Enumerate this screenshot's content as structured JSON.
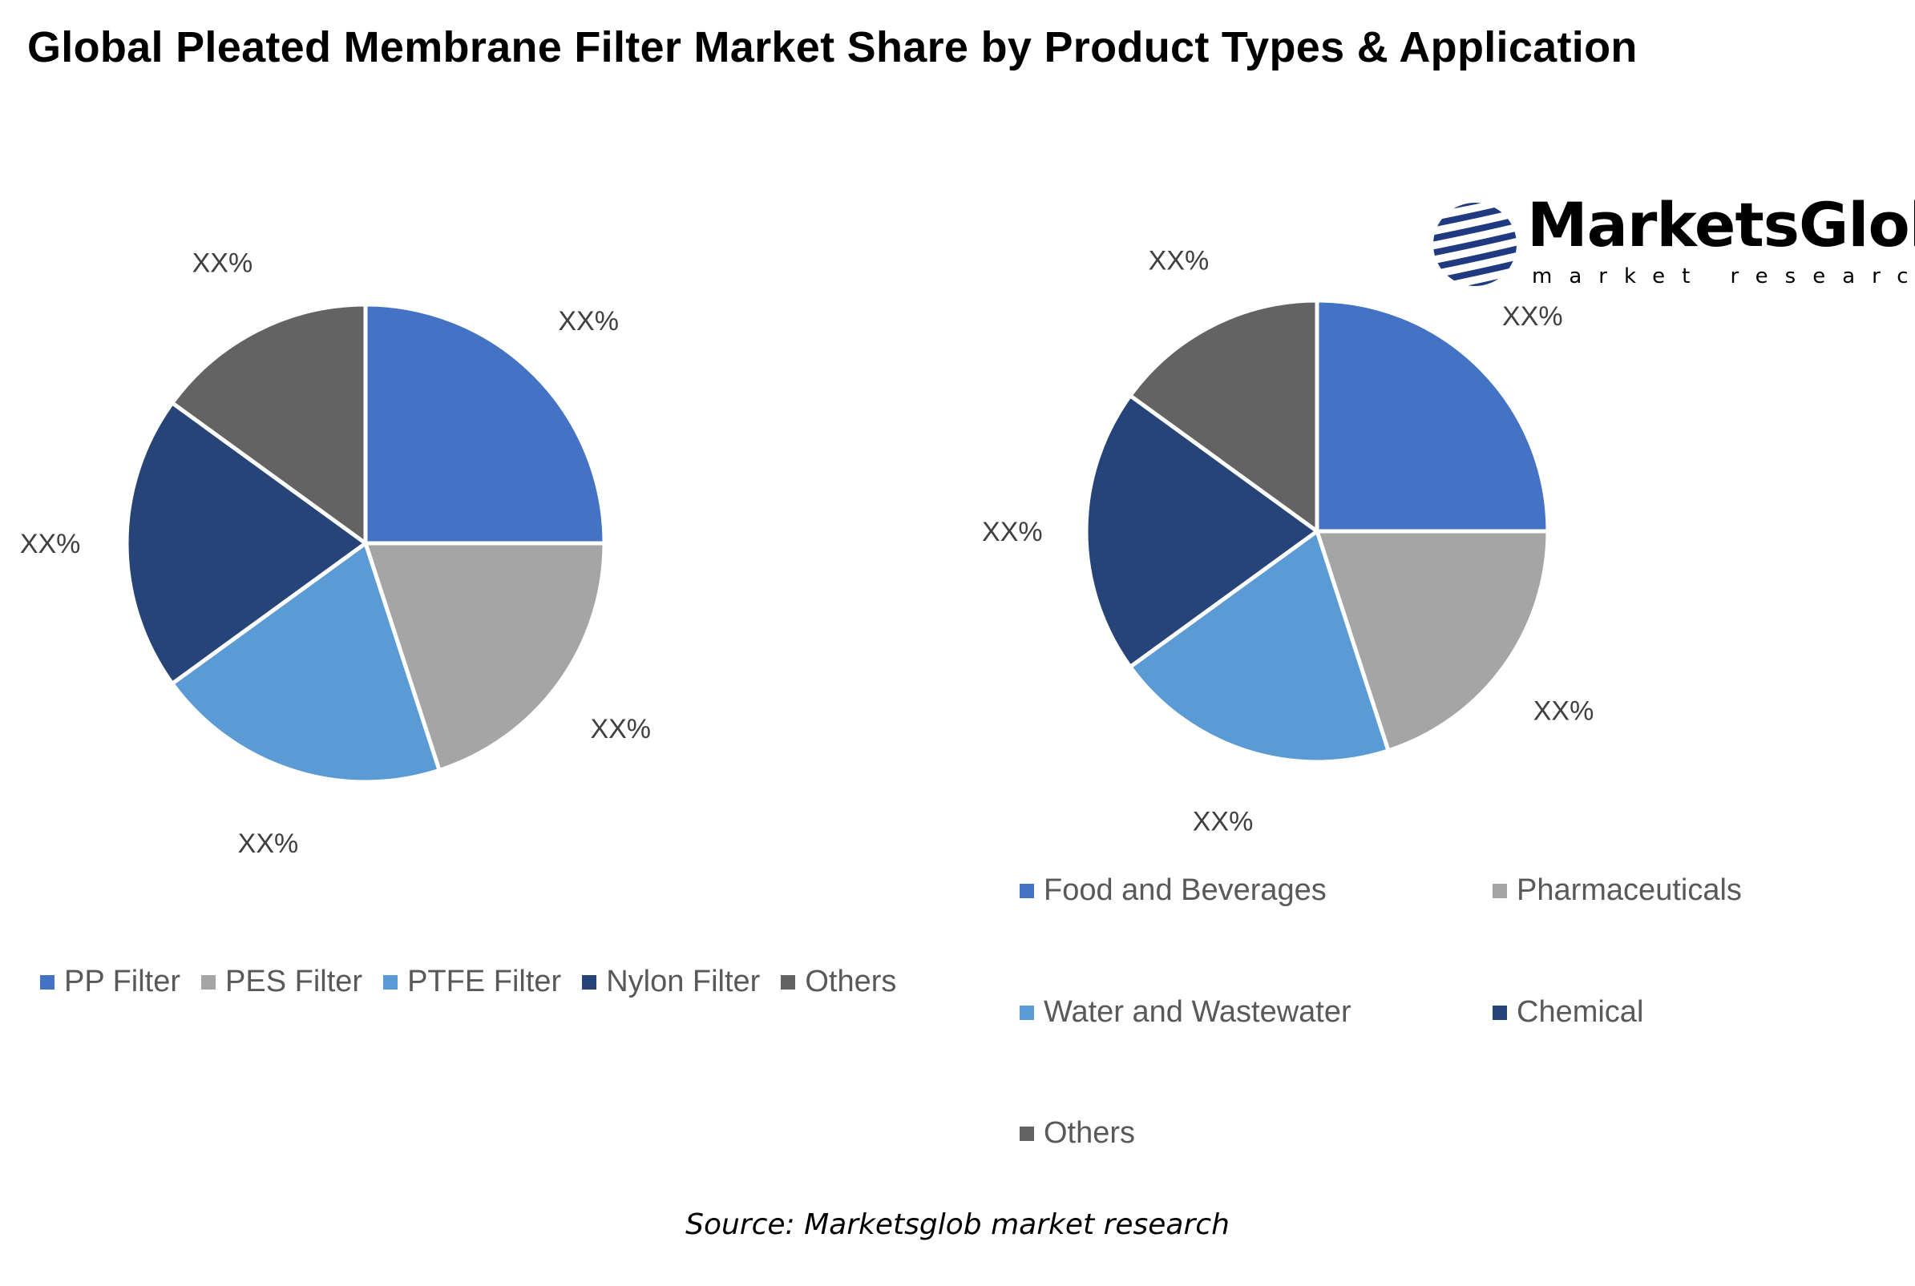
{
  "title": "Global Pleated Membrane Filter Market Share by Product Types & Application",
  "source": "Source: Marketsglob market research",
  "logo": {
    "name": "MarketsGlob",
    "tagline": "market research"
  },
  "chart_data": [
    {
      "type": "pie",
      "categories": [
        "PP Filter",
        "PES Filter",
        "PTFE Filter",
        "Nylon Filter",
        "Others"
      ],
      "values": [
        25,
        20,
        20,
        20,
        15
      ],
      "data_labels": [
        "XX%",
        "XX%",
        "XX%",
        "XX%",
        "XX%"
      ],
      "colors": [
        "#4472C4",
        "#A5A5A5",
        "#5B9BD5",
        "#264478",
        "#636363"
      ],
      "legend": "bottom"
    },
    {
      "type": "pie",
      "categories": [
        "Food and Beverages",
        "Pharmaceuticals",
        "Water and Wastewater",
        "Chemical",
        "Others"
      ],
      "values": [
        25,
        20,
        20,
        20,
        15
      ],
      "data_labels": [
        "XX%",
        "XX%",
        "XX%",
        "XX%",
        "XX%"
      ],
      "colors": [
        "#4472C4",
        "#A5A5A5",
        "#5B9BD5",
        "#264478",
        "#636363"
      ],
      "legend": "bottom"
    }
  ]
}
